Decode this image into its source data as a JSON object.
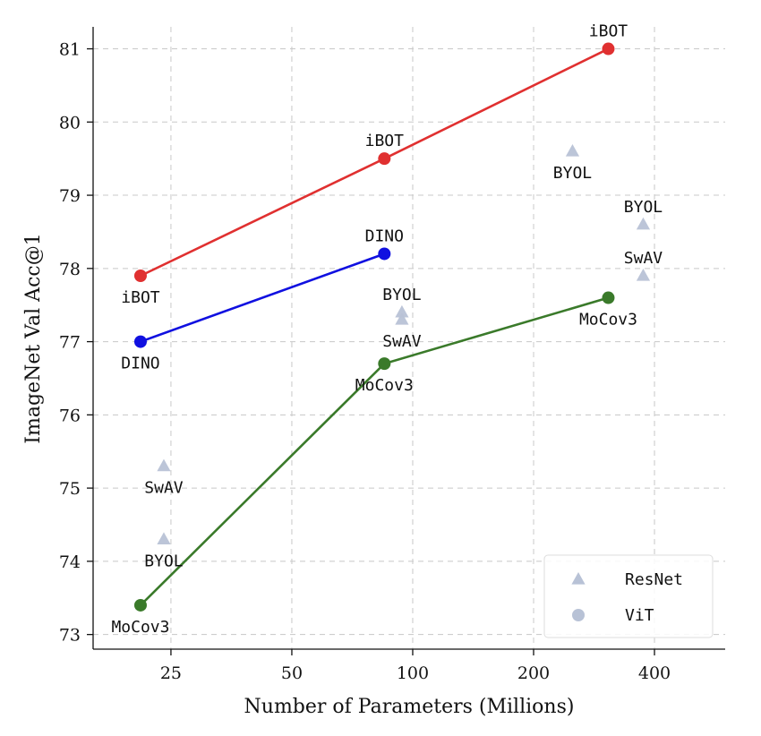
{
  "chart_data": {
    "type": "line",
    "xlabel": "Number of Parameters (Millions)",
    "ylabel": "ImageNet Val Acc@1",
    "xscale": "log",
    "xlim": [
      16,
      600
    ],
    "ylim": [
      72.8,
      81.3
    ],
    "xticks": [
      25,
      50,
      100,
      200,
      400
    ],
    "yticks": [
      73,
      74,
      75,
      76,
      77,
      78,
      79,
      80,
      81
    ],
    "grid": true,
    "legend": {
      "location": "bottom-right",
      "entries": [
        {
          "label": "ResNet",
          "marker": "triangle",
          "color": "#b8c2d6"
        },
        {
          "label": "ViT",
          "marker": "circle",
          "color": "#b8c2d6"
        }
      ]
    },
    "series": [
      {
        "name": "iBOT",
        "color": "#e03030",
        "points": [
          {
            "x": 21,
            "y": 77.9,
            "label": "iBOT",
            "label_pos": "below"
          },
          {
            "x": 85,
            "y": 79.5,
            "label": "iBOT",
            "label_pos": "above"
          },
          {
            "x": 307,
            "y": 81.0,
            "label": "iBOT",
            "label_pos": "above"
          }
        ]
      },
      {
        "name": "DINO",
        "color": "#1010e0",
        "points": [
          {
            "x": 21,
            "y": 77.0,
            "label": "DINO",
            "label_pos": "below"
          },
          {
            "x": 85,
            "y": 78.2,
            "label": "DINO",
            "label_pos": "above"
          }
        ]
      },
      {
        "name": "MoCov3",
        "color": "#3a7a2a",
        "points": [
          {
            "x": 21,
            "y": 73.4,
            "label": "MoCov3",
            "label_pos": "below"
          },
          {
            "x": 85,
            "y": 76.7,
            "label": "MoCov3",
            "label_pos": "below"
          },
          {
            "x": 307,
            "y": 77.6,
            "label": "MoCov3",
            "label_pos": "below"
          }
        ]
      }
    ],
    "resnet_points": [
      {
        "x": 24,
        "y": 75.3,
        "label": "SwAV",
        "label_pos": "below"
      },
      {
        "x": 24,
        "y": 74.3,
        "label": "BYOL",
        "label_pos": "below"
      },
      {
        "x": 94,
        "y": 77.3,
        "label": "SwAV",
        "label_pos": "below"
      },
      {
        "x": 94,
        "y": 77.4,
        "label": "BYOL",
        "label_pos": "above"
      },
      {
        "x": 250,
        "y": 79.6,
        "label": "BYOL",
        "label_pos": "below"
      },
      {
        "x": 375,
        "y": 78.6,
        "label": "BYOL",
        "label_pos": "above"
      },
      {
        "x": 375,
        "y": 77.9,
        "label": "SwAV",
        "label_pos": "above"
      }
    ]
  }
}
